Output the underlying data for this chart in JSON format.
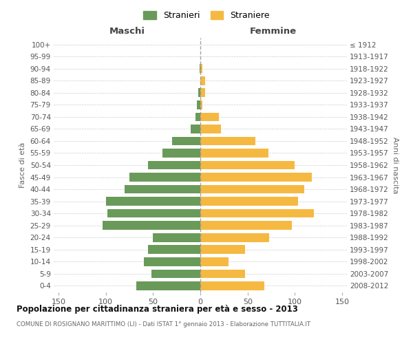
{
  "age_groups": [
    "0-4",
    "5-9",
    "10-14",
    "15-19",
    "20-24",
    "25-29",
    "30-34",
    "35-39",
    "40-44",
    "45-49",
    "50-54",
    "55-59",
    "60-64",
    "65-69",
    "70-74",
    "75-79",
    "80-84",
    "85-89",
    "90-94",
    "95-99",
    "100+"
  ],
  "birth_years": [
    "2008-2012",
    "2003-2007",
    "1998-2002",
    "1993-1997",
    "1988-1992",
    "1983-1987",
    "1978-1982",
    "1973-1977",
    "1968-1972",
    "1963-1967",
    "1958-1962",
    "1953-1957",
    "1948-1952",
    "1943-1947",
    "1938-1942",
    "1933-1937",
    "1928-1932",
    "1923-1927",
    "1918-1922",
    "1913-1917",
    "≤ 1912"
  ],
  "maschi": [
    68,
    52,
    60,
    55,
    50,
    103,
    98,
    100,
    80,
    75,
    55,
    40,
    30,
    10,
    5,
    4,
    2,
    0,
    1,
    0,
    0
  ],
  "femmine": [
    68,
    47,
    30,
    47,
    73,
    97,
    120,
    103,
    110,
    118,
    100,
    72,
    58,
    22,
    20,
    2,
    5,
    5,
    2,
    0,
    0
  ],
  "male_color": "#6a9a5a",
  "female_color": "#f5b942",
  "dashed_line_color": "#999999",
  "background_color": "#ffffff",
  "grid_color": "#cccccc",
  "title": "Popolazione per cittadinanza straniera per età e sesso - 2013",
  "subtitle": "COMUNE DI ROSIGNANO MARITTIMO (LI) - Dati ISTAT 1° gennaio 2013 - Elaborazione TUTTITALIA.IT",
  "left_header": "Maschi",
  "right_header": "Femmine",
  "ylabel_left": "Fasce di età",
  "ylabel_right": "Anni di nascita",
  "legend_male": "Stranieri",
  "legend_female": "Straniere",
  "xlim": 155
}
